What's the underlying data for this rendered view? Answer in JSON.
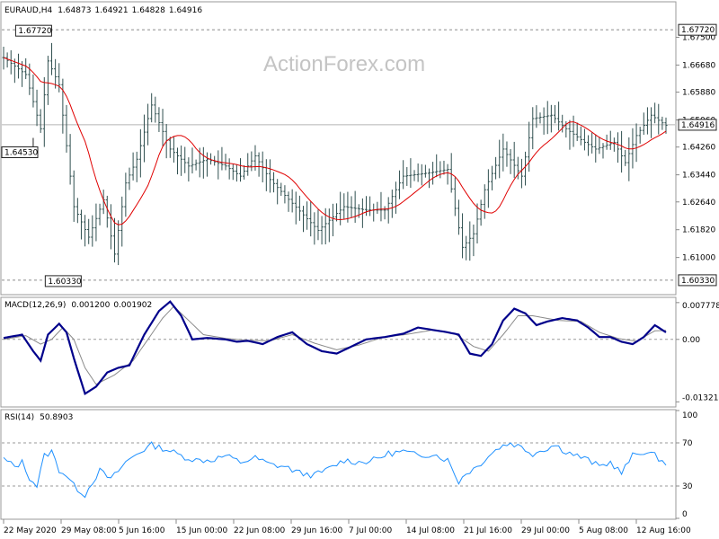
{
  "chart_data": [
    {
      "type": "ohlc",
      "title": "EURAUD,H4",
      "header_values": [
        "1.64873",
        "1.64921",
        "1.64828",
        "1.64916"
      ],
      "watermark": "ActionForex.com",
      "ylim": [
        1.5993,
        1.6852
      ],
      "y_ticks": [
        "1.67500",
        "1.66680",
        "1.65880",
        "1.65060",
        "1.64260",
        "1.63440",
        "1.62640",
        "1.61820",
        "1.61000"
      ],
      "current_price": 1.64916,
      "current_price_label": "1.64916",
      "high_level": 1.6772,
      "high_label": "1.67720",
      "low_level": 1.6033,
      "low_label": "1.60330",
      "callouts": [
        {
          "text": "1.67720",
          "x_index": 12,
          "y": 1.6772
        },
        {
          "text": "1.64530",
          "x_index": 8,
          "y": 1.6453
        },
        {
          "text": "1.60330",
          "x_index": 20,
          "y": 1.6033
        }
      ],
      "x_tick_labels": [
        "22 May 2020",
        "29 May 08:00",
        "5 Jun 16:00",
        "15 Jun 00:00",
        "22 Jun 08:00",
        "29 Jun 16:00",
        "7 Jul 00:00",
        "14 Jul 08:00",
        "21 Jul 16:00",
        "29 Jul 00:00",
        "5 Aug 08:00",
        "12 Aug 16:00"
      ],
      "bar_count": 180,
      "close_anchors": [
        [
          0,
          1.669
        ],
        [
          6,
          1.664
        ],
        [
          10,
          1.648
        ],
        [
          12,
          1.668
        ],
        [
          15,
          1.661
        ],
        [
          19,
          1.625
        ],
        [
          23,
          1.616
        ],
        [
          27,
          1.627
        ],
        [
          30,
          1.611
        ],
        [
          33,
          1.632
        ],
        [
          36,
          1.639
        ],
        [
          40,
          1.655
        ],
        [
          45,
          1.642
        ],
        [
          50,
          1.637
        ],
        [
          55,
          1.639
        ],
        [
          60,
          1.637
        ],
        [
          64,
          1.634
        ],
        [
          68,
          1.64
        ],
        [
          72,
          1.633
        ],
        [
          78,
          1.626
        ],
        [
          85,
          1.618
        ],
        [
          92,
          1.625
        ],
        [
          98,
          1.624
        ],
        [
          103,
          1.624
        ],
        [
          108,
          1.634
        ],
        [
          115,
          1.635
        ],
        [
          120,
          1.636
        ],
        [
          124,
          1.613
        ],
        [
          127,
          1.617
        ],
        [
          130,
          1.63
        ],
        [
          135,
          1.642
        ],
        [
          140,
          1.634
        ],
        [
          143,
          1.651
        ],
        [
          148,
          1.652
        ],
        [
          152,
          1.648
        ],
        [
          157,
          1.644
        ],
        [
          160,
          1.642
        ],
        [
          165,
          1.644
        ],
        [
          168,
          1.638
        ],
        [
          171,
          1.646
        ],
        [
          175,
          1.652
        ],
        [
          179,
          1.649
        ]
      ],
      "moving_average": {
        "color": "#e00000"
      },
      "bar_color": "#2f4f4f"
    },
    {
      "type": "line",
      "title": "MACD(12,26,9)",
      "header_values": [
        "0.001200",
        "0.001902"
      ],
      "ylim": [
        -0.0141,
        0.0087
      ],
      "y_ticks": [
        "0.007778",
        "0.00",
        "-0.01321"
      ],
      "series": [
        {
          "name": "MACD",
          "color": "#00008b",
          "anchors": [
            [
              0,
              0.0003
            ],
            [
              5,
              0.001
            ],
            [
              8,
              -0.0025
            ],
            [
              10,
              -0.0045
            ],
            [
              12,
              0.001
            ],
            [
              15,
              0.0033
            ],
            [
              17,
              0.0015
            ],
            [
              19,
              -0.004
            ],
            [
              22,
              -0.0115
            ],
            [
              25,
              -0.01
            ],
            [
              28,
              -0.007
            ],
            [
              31,
              -0.006
            ],
            [
              34,
              -0.0055
            ],
            [
              38,
              0.001
            ],
            [
              42,
              0.006
            ],
            [
              45,
              0.008
            ],
            [
              48,
              0.005
            ],
            [
              51,
              0.0
            ],
            [
              55,
              0.0003
            ],
            [
              60,
              0.0
            ],
            [
              63,
              -0.0005
            ],
            [
              66,
              -0.0003
            ],
            [
              70,
              -0.001
            ],
            [
              74,
              0.0005
            ],
            [
              78,
              0.0015
            ],
            [
              82,
              -0.001
            ],
            [
              86,
              -0.0025
            ],
            [
              90,
              -0.003
            ],
            [
              94,
              -0.0015
            ],
            [
              98,
              0.0
            ],
            [
              103,
              0.0005
            ],
            [
              108,
              0.0012
            ],
            [
              112,
              0.0025
            ],
            [
              116,
              0.002
            ],
            [
              120,
              0.0015
            ],
            [
              123,
              0.001
            ],
            [
              126,
              -0.003
            ],
            [
              129,
              -0.0035
            ],
            [
              132,
              -0.001
            ],
            [
              135,
              0.004
            ],
            [
              138,
              0.0065
            ],
            [
              141,
              0.0055
            ],
            [
              144,
              0.003
            ],
            [
              147,
              0.0038
            ],
            [
              151,
              0.0045
            ],
            [
              155,
              0.004
            ],
            [
              158,
              0.0025
            ],
            [
              161,
              0.0005
            ],
            [
              164,
              0.0005
            ],
            [
              167,
              -0.0005
            ],
            [
              170,
              -0.001
            ],
            [
              173,
              0.0005
            ],
            [
              176,
              0.003
            ],
            [
              179,
              0.0015
            ]
          ]
        },
        {
          "name": "Signal",
          "color": "#8a8a8a",
          "anchors": [
            [
              0,
              0.0
            ],
            [
              6,
              0.0008
            ],
            [
              10,
              -0.001
            ],
            [
              13,
              0.0
            ],
            [
              16,
              0.0025
            ],
            [
              19,
              0.0
            ],
            [
              22,
              -0.006
            ],
            [
              25,
              -0.0095
            ],
            [
              30,
              -0.0075
            ],
            [
              35,
              -0.0045
            ],
            [
              39,
              0.0
            ],
            [
              43,
              0.0045
            ],
            [
              46,
              0.007
            ],
            [
              50,
              0.004
            ],
            [
              54,
              0.001
            ],
            [
              60,
              0.0002
            ],
            [
              66,
              -0.0002
            ],
            [
              72,
              -0.0003
            ],
            [
              78,
              0.001
            ],
            [
              84,
              -0.0008
            ],
            [
              90,
              -0.0022
            ],
            [
              96,
              -0.0012
            ],
            [
              102,
              0.0003
            ],
            [
              110,
              0.0012
            ],
            [
              116,
              0.002
            ],
            [
              122,
              0.0012
            ],
            [
              127,
              -0.0015
            ],
            [
              131,
              -0.0025
            ],
            [
              135,
              0.001
            ],
            [
              139,
              0.005
            ],
            [
              143,
              0.005
            ],
            [
              150,
              0.004
            ],
            [
              156,
              0.0038
            ],
            [
              161,
              0.0015
            ],
            [
              166,
              0.0002
            ],
            [
              171,
              -0.0004
            ],
            [
              176,
              0.0018
            ],
            [
              179,
              0.0019
            ]
          ]
        }
      ]
    },
    {
      "type": "line",
      "title": "RSI(14)",
      "header_values": [
        "50.8903"
      ],
      "ylim": [
        0,
        100
      ],
      "y_ticks": [
        "100",
        "70",
        "30",
        "0"
      ],
      "levels": [
        70,
        30
      ],
      "series": [
        {
          "name": "RSI",
          "color": "#1e90ff",
          "anchors": [
            [
              0,
              55
            ],
            [
              3,
              48
            ],
            [
              5,
              52
            ],
            [
              7,
              38
            ],
            [
              9,
              30
            ],
            [
              11,
              58
            ],
            [
              13,
              62
            ],
            [
              15,
              45
            ],
            [
              17,
              40
            ],
            [
              19,
              30
            ],
            [
              22,
              22
            ],
            [
              24,
              34
            ],
            [
              26,
              44
            ],
            [
              29,
              36
            ],
            [
              31,
              44
            ],
            [
              33,
              52
            ],
            [
              36,
              60
            ],
            [
              40,
              68
            ],
            [
              44,
              64
            ],
            [
              48,
              58
            ],
            [
              52,
              54
            ],
            [
              56,
              54
            ],
            [
              60,
              58
            ],
            [
              64,
              52
            ],
            [
              68,
              56
            ],
            [
              72,
              50
            ],
            [
              76,
              48
            ],
            [
              80,
              42
            ],
            [
              84,
              40
            ],
            [
              88,
              46
            ],
            [
              92,
              54
            ],
            [
              96,
              52
            ],
            [
              100,
              54
            ],
            [
              104,
              60
            ],
            [
              108,
              62
            ],
            [
              112,
              58
            ],
            [
              116,
              60
            ],
            [
              120,
              54
            ],
            [
              123,
              34
            ],
            [
              125,
              42
            ],
            [
              128,
              48
            ],
            [
              131,
              58
            ],
            [
              134,
              66
            ],
            [
              137,
              70
            ],
            [
              140,
              66
            ],
            [
              143,
              60
            ],
            [
              146,
              64
            ],
            [
              149,
              68
            ],
            [
              152,
              62
            ],
            [
              155,
              58
            ],
            [
              158,
              54
            ],
            [
              161,
              48
            ],
            [
              164,
              52
            ],
            [
              167,
              42
            ],
            [
              170,
              58
            ],
            [
              173,
              62
            ],
            [
              176,
              58
            ],
            [
              179,
              51
            ]
          ]
        }
      ]
    }
  ]
}
